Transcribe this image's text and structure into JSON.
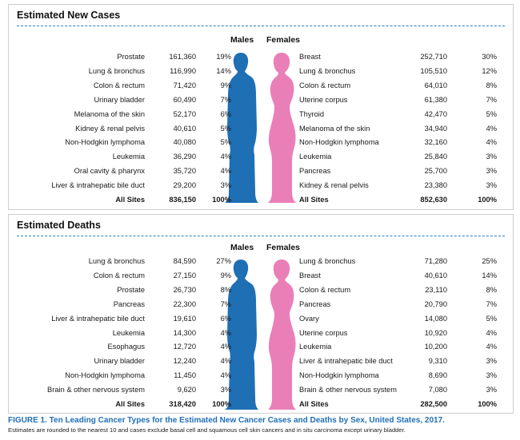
{
  "colors": {
    "male": "#1f6fb5",
    "female": "#ea7fb8",
    "accent": "#2b7fc4"
  },
  "new_cases": {
    "title": "Estimated New Cases",
    "males_header": "Males",
    "females_header": "Females",
    "males": [
      {
        "site": "Prostate",
        "count": "161,360",
        "pct": "19%"
      },
      {
        "site": "Lung & bronchus",
        "count": "116,990",
        "pct": "14%"
      },
      {
        "site": "Colon & rectum",
        "count": "71,420",
        "pct": "9%"
      },
      {
        "site": "Urinary bladder",
        "count": "60,490",
        "pct": "7%"
      },
      {
        "site": "Melanoma of the skin",
        "count": "52,170",
        "pct": "6%"
      },
      {
        "site": "Kidney & renal pelvis",
        "count": "40,610",
        "pct": "5%"
      },
      {
        "site": "Non-Hodgkin lymphoma",
        "count": "40,080",
        "pct": "5%"
      },
      {
        "site": "Leukemia",
        "count": "36,290",
        "pct": "4%"
      },
      {
        "site": "Oral cavity & pharynx",
        "count": "35,720",
        "pct": "4%"
      },
      {
        "site": "Liver & intrahepatic bile duct",
        "count": "29,200",
        "pct": "3%"
      }
    ],
    "males_total": {
      "site": "All Sites",
      "count": "836,150",
      "pct": "100%"
    },
    "females": [
      {
        "site": "Breast",
        "count": "252,710",
        "pct": "30%"
      },
      {
        "site": "Lung & bronchus",
        "count": "105,510",
        "pct": "12%"
      },
      {
        "site": "Colon & rectum",
        "count": "64,010",
        "pct": "8%"
      },
      {
        "site": "Uterine corpus",
        "count": "61,380",
        "pct": "7%"
      },
      {
        "site": "Thyroid",
        "count": "42,470",
        "pct": "5%"
      },
      {
        "site": "Melanoma of the skin",
        "count": "34,940",
        "pct": "4%"
      },
      {
        "site": "Non-Hodgkin lymphoma",
        "count": "32,160",
        "pct": "4%"
      },
      {
        "site": "Leukemia",
        "count": "25,840",
        "pct": "3%"
      },
      {
        "site": "Pancreas",
        "count": "25,700",
        "pct": "3%"
      },
      {
        "site": "Kidney & renal pelvis",
        "count": "23,380",
        "pct": "3%"
      }
    ],
    "females_total": {
      "site": "All Sites",
      "count": "852,630",
      "pct": "100%"
    }
  },
  "deaths": {
    "title": "Estimated Deaths",
    "males_header": "Males",
    "females_header": "Females",
    "males": [
      {
        "site": "Lung & bronchus",
        "count": "84,590",
        "pct": "27%"
      },
      {
        "site": "Colon & rectum",
        "count": "27,150",
        "pct": "9%"
      },
      {
        "site": "Prostate",
        "count": "26,730",
        "pct": "8%"
      },
      {
        "site": "Pancreas",
        "count": "22,300",
        "pct": "7%"
      },
      {
        "site": "Liver & intrahepatic bile duct",
        "count": "19,610",
        "pct": "6%"
      },
      {
        "site": "Leukemia",
        "count": "14,300",
        "pct": "4%"
      },
      {
        "site": "Esophagus",
        "count": "12,720",
        "pct": "4%"
      },
      {
        "site": "Urinary bladder",
        "count": "12,240",
        "pct": "4%"
      },
      {
        "site": "Non-Hodgkin lymphoma",
        "count": "11,450",
        "pct": "4%"
      },
      {
        "site": "Brain & other nervous system",
        "count": "9,620",
        "pct": "3%"
      }
    ],
    "males_total": {
      "site": "All Sites",
      "count": "318,420",
      "pct": "100%"
    },
    "females": [
      {
        "site": "Lung & bronchus",
        "count": "71,280",
        "pct": "25%"
      },
      {
        "site": "Breast",
        "count": "40,610",
        "pct": "14%"
      },
      {
        "site": "Colon & rectum",
        "count": "23,110",
        "pct": "8%"
      },
      {
        "site": "Pancreas",
        "count": "20,790",
        "pct": "7%"
      },
      {
        "site": "Ovary",
        "count": "14,080",
        "pct": "5%"
      },
      {
        "site": "Uterine corpus",
        "count": "10,920",
        "pct": "4%"
      },
      {
        "site": "Leukemia",
        "count": "10,200",
        "pct": "4%"
      },
      {
        "site": "Liver & intrahepatic bile duct",
        "count": "9,310",
        "pct": "3%"
      },
      {
        "site": "Non-Hodgkin lymphoma",
        "count": "8,690",
        "pct": "3%"
      },
      {
        "site": "Brain & other nervous system",
        "count": "7,080",
        "pct": "3%"
      }
    ],
    "females_total": {
      "site": "All Sites",
      "count": "282,500",
      "pct": "100%"
    }
  },
  "caption": {
    "title": "FIGURE 1. Ten Leading Cancer Types for the Estimated New Cancer Cases and Deaths by Sex, United States, 2017.",
    "note": "Estimates are rounded to the nearest 10 and cases exclude basal cell and squamous cell skin cancers and in situ carcinoma except urinary bladder."
  }
}
